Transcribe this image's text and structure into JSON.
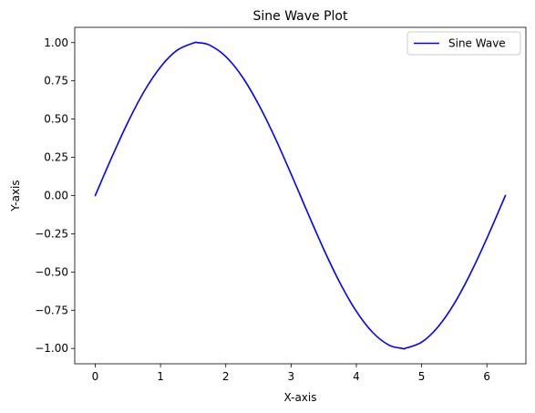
{
  "chart_data": {
    "type": "line",
    "title": "Sine Wave Plot",
    "xlabel": "X-axis",
    "ylabel": "Y-axis",
    "xlim": [
      -0.314,
      6.597
    ],
    "ylim": [
      -1.1,
      1.1
    ],
    "x_ticks": [
      0,
      1,
      2,
      3,
      4,
      5,
      6
    ],
    "x_tick_labels": [
      "0",
      "1",
      "2",
      "3",
      "4",
      "5",
      "6"
    ],
    "y_ticks": [
      -1.0,
      -0.75,
      -0.5,
      -0.25,
      0.0,
      0.25,
      0.5,
      0.75,
      1.0
    ],
    "y_tick_labels": [
      "−1.00",
      "−0.75",
      "−0.50",
      "−0.25",
      "0.00",
      "0.25",
      "0.50",
      "0.75",
      "1.00"
    ],
    "grid": false,
    "legend_position": "top-right",
    "series": [
      {
        "name": "Sine Wave",
        "color": "#0000ff",
        "x": [
          0,
          0.25,
          0.5,
          0.75,
          1.0,
          1.25,
          1.5,
          1.571,
          1.75,
          2.0,
          2.25,
          2.5,
          2.75,
          3.0,
          3.142,
          3.25,
          3.5,
          3.75,
          4.0,
          4.25,
          4.5,
          4.712,
          4.75,
          5.0,
          5.25,
          5.5,
          5.75,
          6.0,
          6.283
        ],
        "y": [
          0,
          0.247,
          0.479,
          0.682,
          0.841,
          0.949,
          0.997,
          1.0,
          0.984,
          0.909,
          0.778,
          0.598,
          0.382,
          0.141,
          0.0,
          -0.108,
          -0.351,
          -0.572,
          -0.757,
          -0.895,
          -0.978,
          -1.0,
          -0.999,
          -0.959,
          -0.859,
          -0.706,
          -0.508,
          -0.279,
          0.0
        ]
      }
    ]
  }
}
